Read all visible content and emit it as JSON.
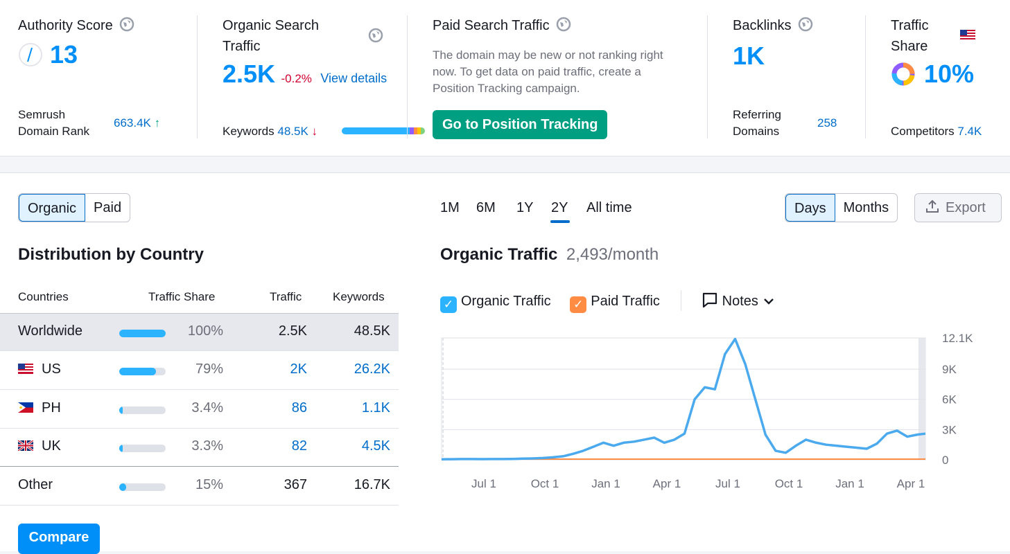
{
  "metrics": {
    "authority": {
      "title": "Authority Score",
      "value": "13",
      "rank_label": "Semrush Domain Rank",
      "rank_value": "663.4K",
      "rank_arrow": "↑"
    },
    "organic": {
      "title": "Organic Search Traffic",
      "value": "2.5K",
      "change": "-0.2%",
      "link": "View details",
      "keywords_label": "Keywords",
      "keywords_value": "48.5K",
      "keywords_arrow": "↓"
    },
    "paid": {
      "title": "Paid Search Traffic",
      "message": "The domain may be new or not ranking right now. To get data on paid traffic, create a Position Tracking campaign.",
      "button": "Go to Position Tracking"
    },
    "backlinks": {
      "title": "Backlinks",
      "value": "1K",
      "ref_label": "Referring Domains",
      "ref_value": "258"
    },
    "share": {
      "title": "Traffic Share",
      "value": "10%",
      "comp_label": "Competitors",
      "comp_value": "7.4K"
    }
  },
  "toggle": {
    "organic": "Organic",
    "paid": "Paid"
  },
  "periods": [
    "1M",
    "6M",
    "1Y",
    "2Y",
    "All time"
  ],
  "selected_period": "2Y",
  "granularity": {
    "days": "Days",
    "months": "Months"
  },
  "export_label": "Export",
  "distribution": {
    "title": "Distribution by Country",
    "headers": {
      "countries": "Countries",
      "share": "Traffic Share",
      "traffic": "Traffic",
      "keywords": "Keywords"
    },
    "rows": [
      {
        "name": "Worldwide",
        "share": "100%",
        "fill": 1.0,
        "traffic": "2.5K",
        "keywords": "48.5K"
      },
      {
        "name": "US",
        "share": "79%",
        "fill": 0.79,
        "traffic": "2K",
        "keywords": "26.2K"
      },
      {
        "name": "PH",
        "share": "3.4%",
        "fill": 0.034,
        "traffic": "86",
        "keywords": "1.1K"
      },
      {
        "name": "UK",
        "share": "3.3%",
        "fill": 0.033,
        "traffic": "82",
        "keywords": "4.5K"
      },
      {
        "name": "Other",
        "share": "15%",
        "fill": 0.15,
        "traffic": "367",
        "keywords": "16.7K"
      }
    ],
    "compare": "Compare"
  },
  "chart_header": {
    "title": "Organic Traffic",
    "value": "2,493/month"
  },
  "legend": {
    "organic": "Organic Traffic",
    "paid": "Paid Traffic",
    "notes": "Notes"
  },
  "colors": {
    "accent": "#008ff8",
    "organic_line": "#4ba9ee",
    "paid_line": "#ff8c42",
    "green": "#009f81",
    "negative": "#d1002f"
  },
  "chart_data": {
    "type": "line",
    "x_ticks": [
      "Jul 1",
      "Oct 1",
      "Jan 1",
      "Apr 1",
      "Jul 1",
      "Oct 1",
      "Jan 1",
      "Apr 1"
    ],
    "y_ticks": [
      "0",
      "3K",
      "6K",
      "9K",
      "12.1K"
    ],
    "ylim": [
      0,
      12100
    ],
    "series": [
      {
        "name": "Organic Traffic",
        "points": [
          [
            0,
            50
          ],
          [
            10,
            60
          ],
          [
            20,
            60
          ],
          [
            40,
            80
          ],
          [
            60,
            80
          ],
          [
            80,
            70
          ],
          [
            100,
            80
          ],
          [
            120,
            80
          ],
          [
            140,
            90
          ],
          [
            160,
            120
          ],
          [
            180,
            140
          ],
          [
            200,
            180
          ],
          [
            220,
            250
          ],
          [
            240,
            350
          ],
          [
            260,
            600
          ],
          [
            280,
            900
          ],
          [
            300,
            1300
          ],
          [
            320,
            1700
          ],
          [
            340,
            1400
          ],
          [
            360,
            1700
          ],
          [
            380,
            1800
          ],
          [
            400,
            2000
          ],
          [
            420,
            2200
          ],
          [
            440,
            1700
          ],
          [
            460,
            2000
          ],
          [
            480,
            2600
          ],
          [
            500,
            6000
          ],
          [
            520,
            7200
          ],
          [
            540,
            7000
          ],
          [
            560,
            10500
          ],
          [
            580,
            12000
          ],
          [
            600,
            9500
          ],
          [
            620,
            6000
          ],
          [
            640,
            2500
          ],
          [
            660,
            900
          ],
          [
            680,
            700
          ],
          [
            700,
            1400
          ],
          [
            720,
            2000
          ],
          [
            740,
            1700
          ],
          [
            760,
            1500
          ],
          [
            780,
            1400
          ],
          [
            800,
            1300
          ],
          [
            820,
            1200
          ],
          [
            840,
            1100
          ],
          [
            860,
            1600
          ],
          [
            880,
            2600
          ],
          [
            900,
            2900
          ],
          [
            920,
            2300
          ],
          [
            940,
            2500
          ],
          [
            956,
            2600
          ]
        ]
      },
      {
        "name": "Paid Traffic",
        "points": [
          [
            0,
            0
          ],
          [
            956,
            0
          ]
        ]
      }
    ]
  }
}
